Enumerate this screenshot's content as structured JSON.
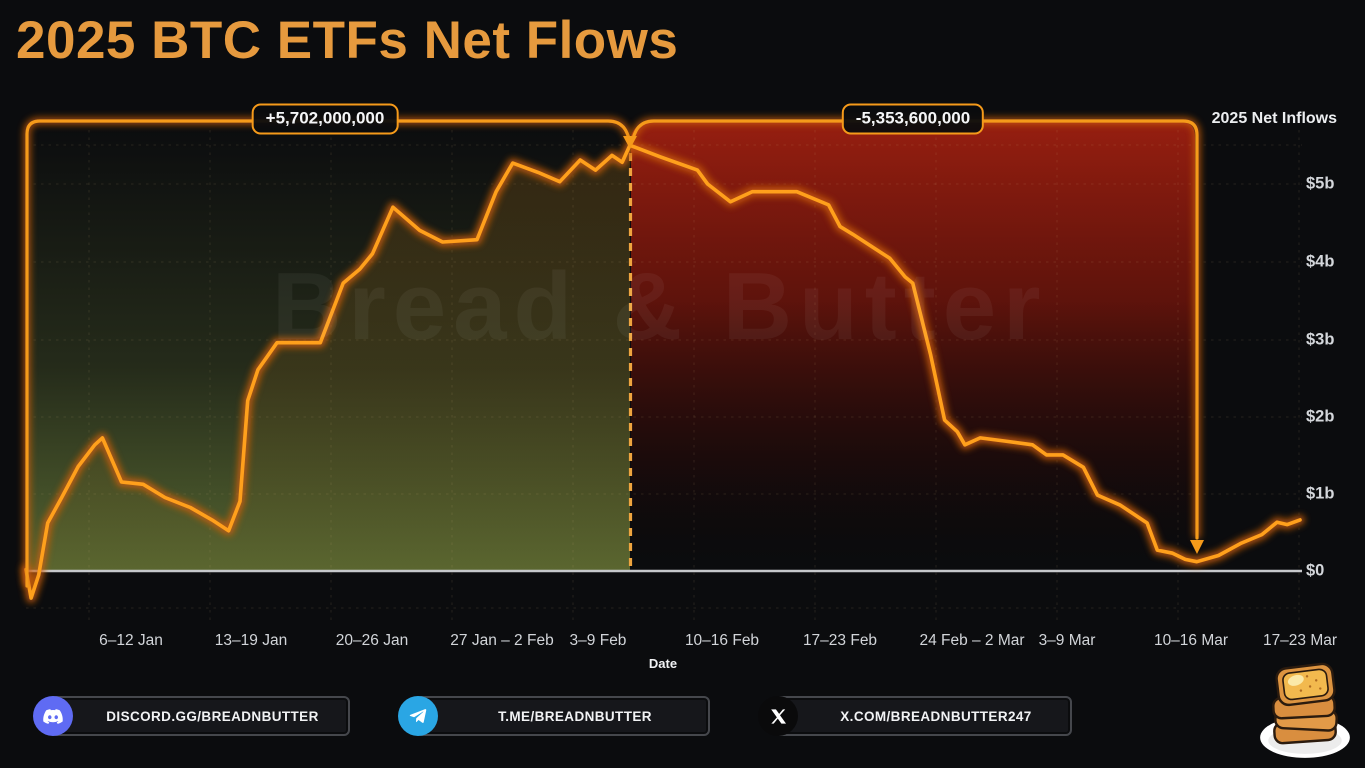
{
  "page": {
    "title": "2025 BTC ETFs Net Flows",
    "watermark": "Bread & Butter"
  },
  "chart_data": {
    "type": "line",
    "title": "2025 BTC ETFs Net Flows",
    "xlabel": "Date",
    "ylabel": "",
    "legend": "2025 Net Inflows",
    "x_ticks": [
      "6–12 Jan",
      "13–19 Jan",
      "20–26 Jan",
      "27 Jan – 2 Feb",
      "3–9 Feb",
      "10–16 Feb",
      "17–23 Feb",
      "24 Feb – 2 Mar",
      "3–9 Mar",
      "10–16 Mar",
      "17–23 Mar"
    ],
    "y_ticks": [
      "$5b",
      "$4b",
      "$3b",
      "$2b",
      "$1b",
      "$0"
    ],
    "y_unit": "billions USD (cumulative net flow)",
    "ylim": [
      -0.6,
      5.85
    ],
    "grid": "dashed",
    "legend_position": "top-right",
    "annotations": [
      {
        "id": "inflow-phase",
        "text": "+5,702,000,000",
        "meaning": "cumulative inflow from start to peak"
      },
      {
        "id": "outflow-phase",
        "text": "-5,353,600,000",
        "meaning": "cumulative outflow from peak to trough"
      }
    ],
    "split_t": 0.474,
    "trough_t": 0.919,
    "series": [
      {
        "name": "2025 BTC ETF cumulative net flows ($b)",
        "points": [
          [
            0.0,
            0.02
          ],
          [
            0.004,
            -0.35
          ],
          [
            0.01,
            -0.05
          ],
          [
            0.017,
            0.62
          ],
          [
            0.028,
            0.95
          ],
          [
            0.041,
            1.35
          ],
          [
            0.054,
            1.63
          ],
          [
            0.06,
            1.72
          ],
          [
            0.075,
            1.15
          ],
          [
            0.092,
            1.12
          ],
          [
            0.109,
            0.95
          ],
          [
            0.129,
            0.82
          ],
          [
            0.146,
            0.66
          ],
          [
            0.159,
            0.52
          ],
          [
            0.168,
            0.9
          ],
          [
            0.174,
            2.2
          ],
          [
            0.182,
            2.6
          ],
          [
            0.197,
            2.95
          ],
          [
            0.231,
            2.95
          ],
          [
            0.249,
            3.72
          ],
          [
            0.262,
            3.9
          ],
          [
            0.272,
            4.1
          ],
          [
            0.288,
            4.7
          ],
          [
            0.309,
            4.4
          ],
          [
            0.327,
            4.25
          ],
          [
            0.354,
            4.28
          ],
          [
            0.369,
            4.9
          ],
          [
            0.382,
            5.27
          ],
          [
            0.402,
            5.15
          ],
          [
            0.419,
            5.03
          ],
          [
            0.435,
            5.31
          ],
          [
            0.447,
            5.18
          ],
          [
            0.46,
            5.37
          ],
          [
            0.468,
            5.28
          ],
          [
            0.474,
            5.5
          ],
          [
            0.498,
            5.35
          ],
          [
            0.527,
            5.18
          ],
          [
            0.535,
            5.0
          ],
          [
            0.553,
            4.77
          ],
          [
            0.57,
            4.9
          ],
          [
            0.605,
            4.9
          ],
          [
            0.63,
            4.73
          ],
          [
            0.639,
            4.45
          ],
          [
            0.649,
            4.35
          ],
          [
            0.678,
            4.04
          ],
          [
            0.69,
            3.8
          ],
          [
            0.696,
            3.72
          ],
          [
            0.71,
            2.8
          ],
          [
            0.721,
            1.95
          ],
          [
            0.731,
            1.8
          ],
          [
            0.737,
            1.63
          ],
          [
            0.749,
            1.72
          ],
          [
            0.768,
            1.68
          ],
          [
            0.79,
            1.63
          ],
          [
            0.801,
            1.5
          ],
          [
            0.814,
            1.5
          ],
          [
            0.83,
            1.34
          ],
          [
            0.841,
            0.98
          ],
          [
            0.859,
            0.85
          ],
          [
            0.88,
            0.62
          ],
          [
            0.888,
            0.27
          ],
          [
            0.9,
            0.23
          ],
          [
            0.91,
            0.15
          ],
          [
            0.919,
            0.12
          ],
          [
            0.936,
            0.2
          ],
          [
            0.954,
            0.36
          ],
          [
            0.97,
            0.47
          ],
          [
            0.982,
            0.63
          ],
          [
            0.99,
            0.6
          ],
          [
            1.0,
            0.66
          ]
        ]
      }
    ],
    "colors": {
      "line": "#ffa01c",
      "line_glow": "#cc5f08",
      "bracket": "#f59a1a",
      "divider": "#eea43f",
      "gain_fill": "#829b46",
      "loss_fill": "#9b1f10",
      "zero_line": "#c6c8cb",
      "axis_text": "#d4d7db",
      "title": "#e69a3e"
    }
  },
  "axis": {
    "date_label": "Date"
  },
  "social": {
    "items": [
      {
        "icon": "discord",
        "label": "DISCORD.GG/BREADNBUTTER"
      },
      {
        "icon": "telegram",
        "label": "T.ME/BREADNBUTTER"
      },
      {
        "icon": "x-twitter",
        "label": "X.COM/BREADNBUTTER247"
      }
    ]
  }
}
